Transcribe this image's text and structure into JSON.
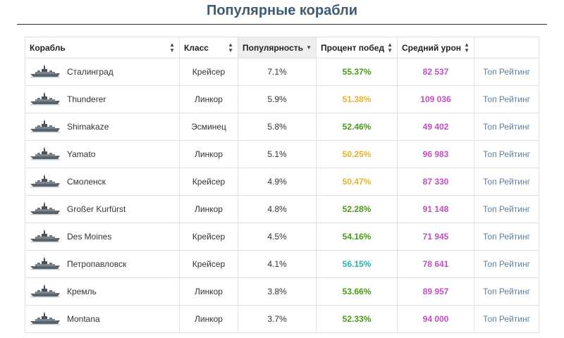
{
  "page": {
    "title": "Популярные корабли"
  },
  "table": {
    "columns": [
      {
        "label": "Корабль",
        "sort": "both"
      },
      {
        "label": "Класс",
        "sort": "both"
      },
      {
        "label": "Популярность",
        "sort": "desc"
      },
      {
        "label": "Процент побед",
        "sort": "both"
      },
      {
        "label": "Средний урон",
        "sort": "both"
      },
      {
        "label": "",
        "sort": "none"
      }
    ],
    "rows": [
      {
        "ship": "Сталинград",
        "class": "Крейсер",
        "popularity": "7.1%",
        "winrate": "55.37%",
        "winrate_color": "#4a9a17",
        "damage": "82 537",
        "link": "Топ Рейтинг"
      },
      {
        "ship": "Thunderer",
        "class": "Линкор",
        "popularity": "5.9%",
        "winrate": "51.38%",
        "winrate_color": "#e5b32e",
        "damage": "109 036",
        "link": "Топ Рейтинг"
      },
      {
        "ship": "Shimakaze",
        "class": "Эсминец",
        "popularity": "5.8%",
        "winrate": "52.46%",
        "winrate_color": "#4a9a17",
        "damage": "49 402",
        "link": "Топ Рейтинг"
      },
      {
        "ship": "Yamato",
        "class": "Линкор",
        "popularity": "5.1%",
        "winrate": "50.25%",
        "winrate_color": "#e5b32e",
        "damage": "96 983",
        "link": "Топ Рейтинг"
      },
      {
        "ship": "Смоленск",
        "class": "Крейсер",
        "popularity": "4.9%",
        "winrate": "50.47%",
        "winrate_color": "#e5b32e",
        "damage": "87 330",
        "link": "Топ Рейтинг"
      },
      {
        "ship": "Großer Kurfürst",
        "class": "Линкор",
        "popularity": "4.8%",
        "winrate": "52.28%",
        "winrate_color": "#4a9a17",
        "damage": "91 148",
        "link": "Топ Рейтинг"
      },
      {
        "ship": "Des Moines",
        "class": "Крейсер",
        "popularity": "4.5%",
        "winrate": "54.16%",
        "winrate_color": "#4a9a17",
        "damage": "71 945",
        "link": "Топ Рейтинг"
      },
      {
        "ship": "Петропавловск",
        "class": "Крейсер",
        "popularity": "4.1%",
        "winrate": "56.15%",
        "winrate_color": "#22b5a8",
        "damage": "78 641",
        "link": "Топ Рейтинг"
      },
      {
        "ship": "Кремль",
        "class": "Линкор",
        "popularity": "3.8%",
        "winrate": "53.66%",
        "winrate_color": "#4a9a17",
        "damage": "89 957",
        "link": "Топ Рейтинг"
      },
      {
        "ship": "Montana",
        "class": "Линкор",
        "popularity": "3.7%",
        "winrate": "52.33%",
        "winrate_color": "#4a9a17",
        "damage": "94 000",
        "link": "Топ Рейтинг"
      }
    ]
  },
  "colors": {
    "title": "#3f5a73",
    "damage": "#c24ec2",
    "link": "#5a7fa0"
  },
  "icons": {
    "ship": "warship-icon",
    "sort_both": "sort-arrows-icon",
    "sort_desc": "sort-desc-icon"
  }
}
